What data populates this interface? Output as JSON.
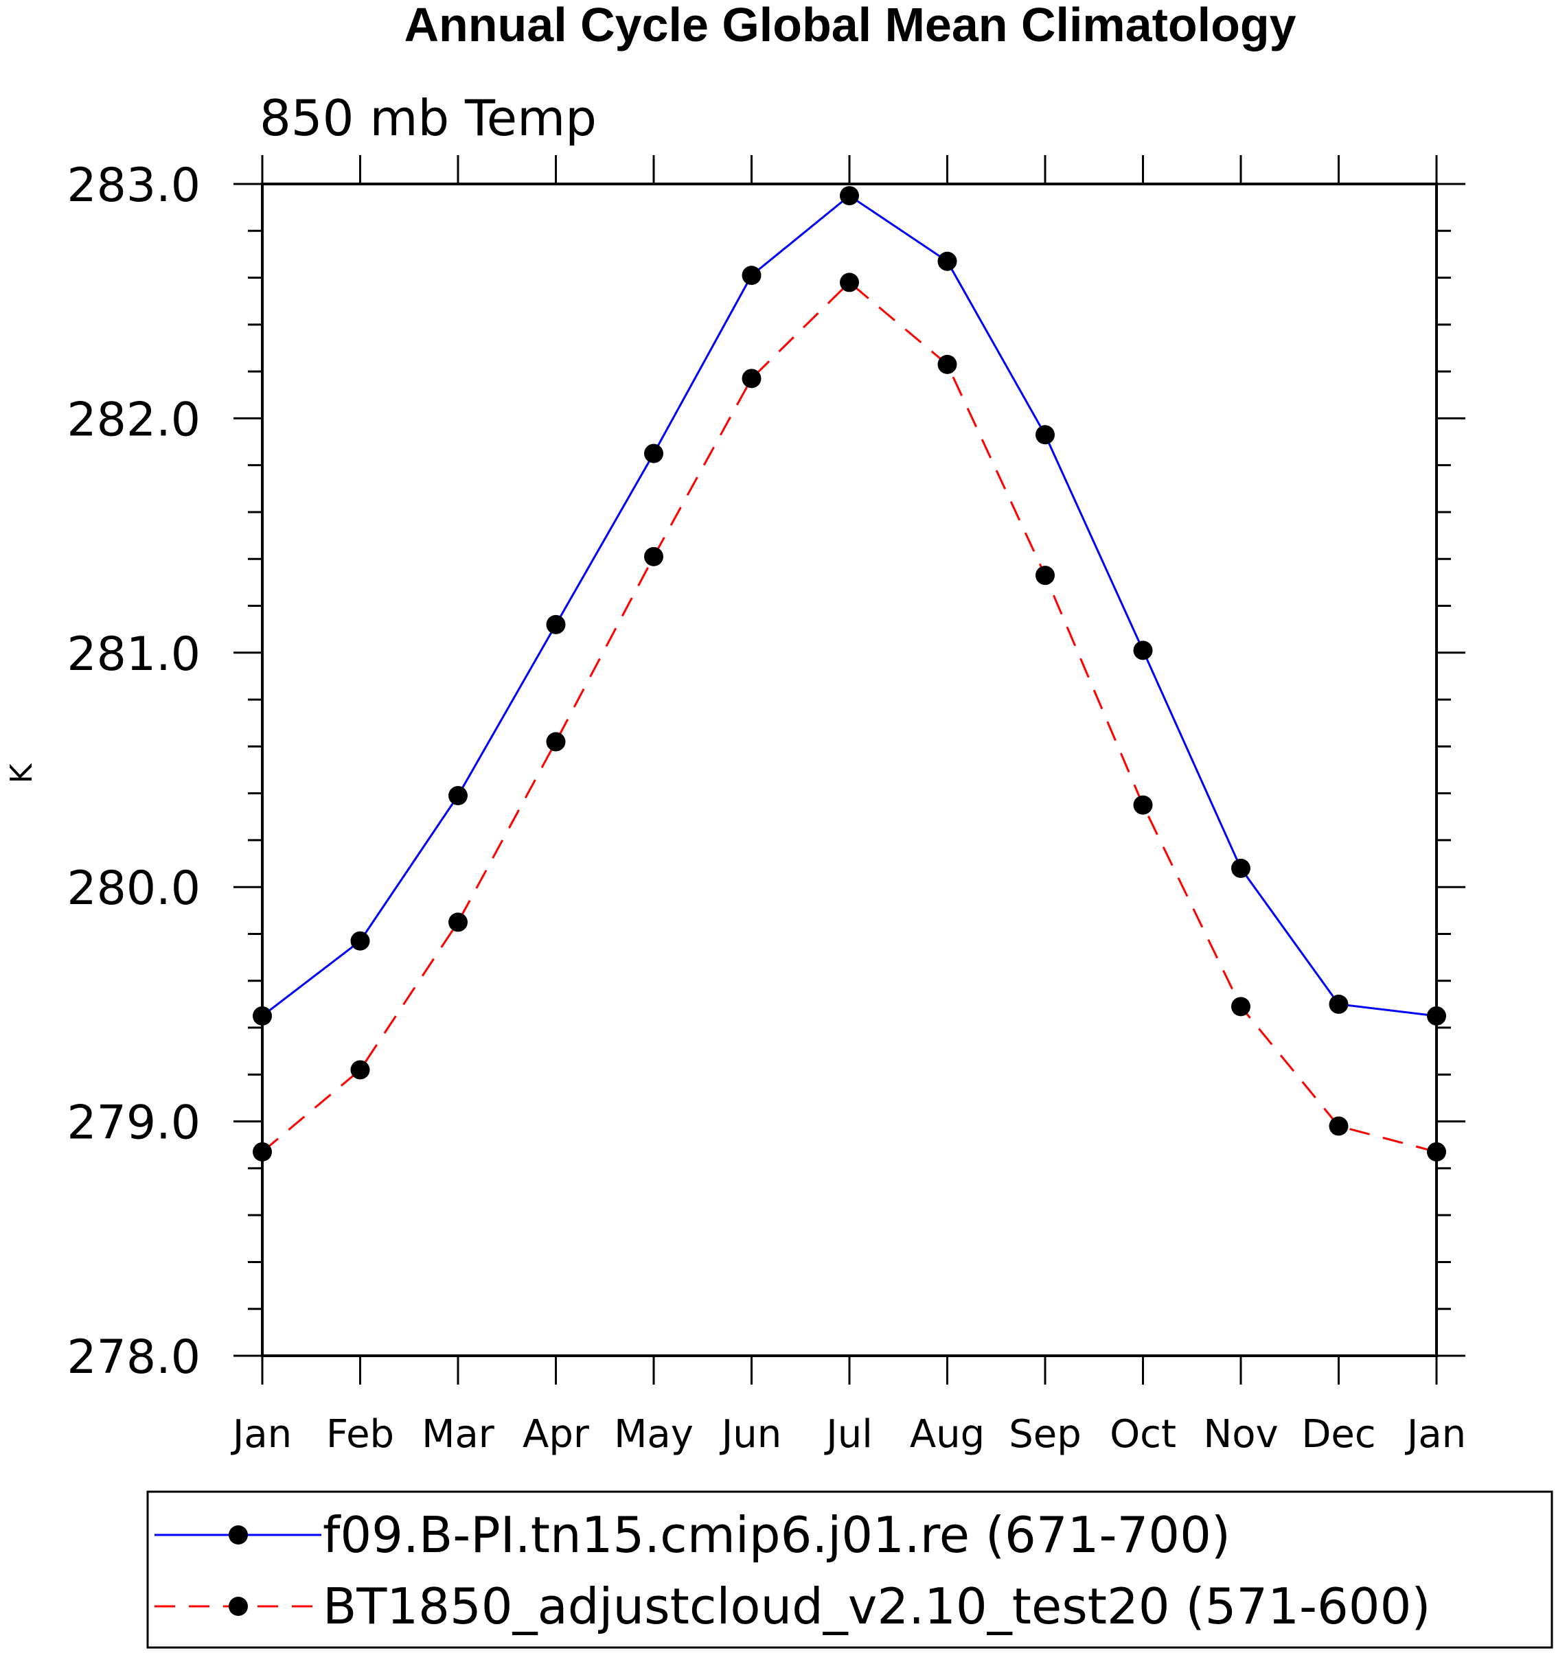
{
  "chart_data": {
    "type": "line",
    "title": "Annual Cycle Global Mean Climatology",
    "subtitle": "850 mb Temp",
    "ylabel": "K",
    "xlabel": "",
    "ylim": [
      278.0,
      283.0
    ],
    "yticks": [
      "278.0",
      "279.0",
      "280.0",
      "281.0",
      "282.0",
      "283.0"
    ],
    "categories": [
      "Jan",
      "Feb",
      "Mar",
      "Apr",
      "May",
      "Jun",
      "Jul",
      "Aug",
      "Sep",
      "Oct",
      "Nov",
      "Dec",
      "Jan"
    ],
    "grid": false,
    "legend_position": "bottom",
    "series": [
      {
        "name": "f09.B-PI.tn15.cmip6.j01.re (671-700)",
        "color": "#0000ff",
        "dash": "solid",
        "values": [
          279.45,
          279.77,
          280.39,
          281.12,
          281.85,
          282.61,
          282.95,
          282.67,
          281.93,
          281.01,
          280.08,
          279.5,
          279.45
        ]
      },
      {
        "name": "BT1850_adjustcloud_v2.10_test20 (571-600)",
        "color": "#ff0000",
        "dash": "dashed",
        "values": [
          278.87,
          279.22,
          279.85,
          280.62,
          281.41,
          282.17,
          282.58,
          282.23,
          281.33,
          280.35,
          279.49,
          278.98,
          278.87
        ]
      }
    ]
  }
}
